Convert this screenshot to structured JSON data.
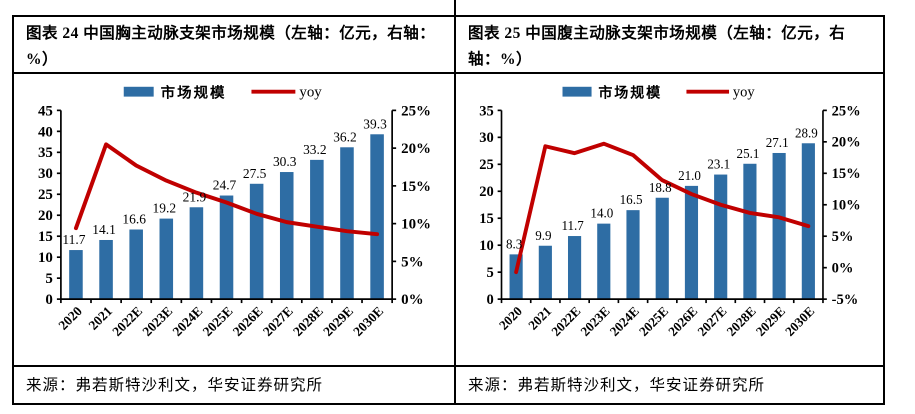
{
  "colors": {
    "bar": "#2E6DA4",
    "line": "#C00000",
    "border": "#000000",
    "text": "#000000",
    "background": "#FFFFFF"
  },
  "panels": [
    {
      "title": "图表 24  中国胸主动脉支架市场规模（左轴：亿元，右轴：%）",
      "source": "来源：弗若斯特沙利文，华安证券研究所"
    },
    {
      "title": "图表 25  中国腹主动脉支架市场规模（左轴：亿元，右轴：%）",
      "source": "来源：弗若斯特沙利文，华安证券研究所"
    }
  ],
  "chart_data": [
    {
      "type": "bar",
      "title": "中国胸主动脉支架市场规模（左轴：亿元，右轴：%）",
      "categories": [
        "2020",
        "2021",
        "2022E",
        "2023E",
        "2024E",
        "2025E",
        "2026E",
        "2027E",
        "2028E",
        "2029E",
        "2030E"
      ],
      "series": [
        {
          "name": "市场规模",
          "type": "bar",
          "axis": "left",
          "values": [
            11.7,
            14.1,
            16.6,
            19.2,
            21.9,
            24.7,
            27.5,
            30.3,
            33.2,
            36.2,
            39.3
          ]
        },
        {
          "name": "yoy",
          "type": "line",
          "axis": "right",
          "values": [
            9.4,
            20.5,
            17.7,
            15.7,
            14.1,
            12.8,
            11.3,
            10.2,
            9.6,
            9.0,
            8.6
          ]
        }
      ],
      "left_axis": {
        "min": 0,
        "max": 45,
        "step": 5,
        "unit": "亿元"
      },
      "right_axis": {
        "min": 0,
        "max": 25,
        "step": 5,
        "unit": "%"
      },
      "legend_position": "top",
      "grid": false,
      "data_labels": true
    },
    {
      "type": "bar",
      "title": "中国腹主动脉支架市场规模（左轴：亿元，右轴：%）",
      "categories": [
        "2020",
        "2021",
        "2022E",
        "2023E",
        "2024E",
        "2025E",
        "2026E",
        "2027E",
        "2028E",
        "2029E",
        "2030E"
      ],
      "series": [
        {
          "name": "市场规模",
          "type": "bar",
          "axis": "left",
          "values": [
            8.3,
            9.9,
            11.7,
            14.0,
            16.5,
            18.8,
            21.0,
            23.1,
            25.1,
            27.1,
            28.9
          ]
        },
        {
          "name": "yoy",
          "type": "line",
          "axis": "right",
          "values": [
            -0.7,
            19.3,
            18.2,
            19.7,
            17.9,
            13.9,
            11.7,
            10.0,
            8.7,
            8.0,
            6.6
          ]
        }
      ],
      "left_axis": {
        "min": 0,
        "max": 35,
        "step": 5,
        "unit": "亿元"
      },
      "right_axis": {
        "min": -5,
        "max": 25,
        "step": 5,
        "unit": "%"
      },
      "legend_position": "top",
      "grid": false,
      "data_labels": true
    }
  ]
}
